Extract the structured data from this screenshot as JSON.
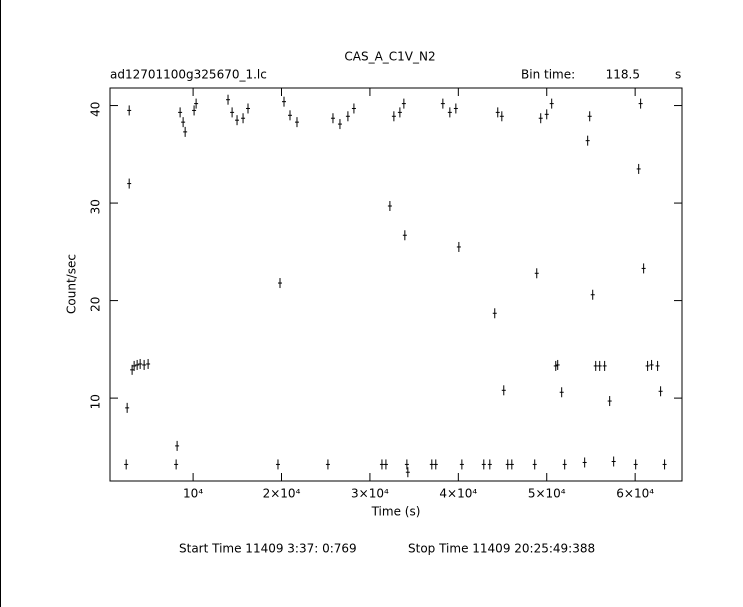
{
  "chart_data": {
    "type": "scatter",
    "title": "CAS_A_C1V_N2",
    "subtitle": "ad12701100g325670_1.lc",
    "bin_time_label": "Bin time:",
    "bin_time": 118.5,
    "bin_time_unit": "s",
    "x_label": "Time (s)",
    "y_label": "Count/sec",
    "start_time": "Start Time 11409  3:37: 0:769",
    "stop_time": "Stop Time 11409 20:25:49:388",
    "color": "#000000",
    "xlim": [
      600,
      65300
    ],
    "ylim": [
      1.5,
      41.8
    ],
    "xticks": [
      {
        "value": 10000,
        "label": "10⁴"
      },
      {
        "value": 20000,
        "label": "2×10⁴"
      },
      {
        "value": 30000,
        "label": "3×10⁴"
      },
      {
        "value": 40000,
        "label": "4×10⁴"
      },
      {
        "value": 50000,
        "label": "5×10⁴"
      },
      {
        "value": 60000,
        "label": "6×10⁴"
      }
    ],
    "yticks": [
      10,
      20,
      30,
      40
    ],
    "x": [
      2430,
      2540,
      2770,
      2770,
      3100,
      3330,
      3670,
      4010,
      4460,
      4910,
      8080,
      8190,
      8530,
      8870,
      9100,
      10110,
      10340,
      13950,
      14410,
      14970,
      15650,
      16210,
      19600,
      19830,
      20280,
      20960,
      21750,
      25250,
      25820,
      26610,
      27510,
      28190,
      31360,
      31810,
      32260,
      32710,
      33390,
      33840,
      33950,
      34180,
      34290,
      37000,
      37450,
      38250,
      39040,
      39720,
      40060,
      40400,
      42880,
      43560,
      44120,
      44460,
      44920,
      45140,
      45590,
      46050,
      48640,
      48870,
      49320,
      50000,
      50560,
      51020,
      51240,
      51690,
      52030,
      54290,
      54630,
      54860,
      55200,
      55540,
      55990,
      56550,
      57120,
      57570,
      60060,
      60400,
      60620,
      60960,
      61410,
      61860,
      62540,
      62880,
      63330
    ],
    "values": [
      3.2,
      9.0,
      32.0,
      39.5,
      12.9,
      13.3,
      13.4,
      13.5,
      13.4,
      13.5,
      3.2,
      5.1,
      39.3,
      38.3,
      37.3,
      39.5,
      40.2,
      40.6,
      39.3,
      38.5,
      38.7,
      39.7,
      3.2,
      21.8,
      40.4,
      39.0,
      38.3,
      3.2,
      38.7,
      38.1,
      38.9,
      39.7,
      3.2,
      3.2,
      29.7,
      38.9,
      39.3,
      40.2,
      26.7,
      3.2,
      2.4,
      3.2,
      3.2,
      40.2,
      39.3,
      39.7,
      25.5,
      3.2,
      3.2,
      3.2,
      18.7,
      39.3,
      38.9,
      10.8,
      3.2,
      3.2,
      3.2,
      22.8,
      38.7,
      39.1,
      40.2,
      13.3,
      13.4,
      10.6,
      3.2,
      3.4,
      36.4,
      38.9,
      20.6,
      13.3,
      13.3,
      13.3,
      9.7,
      3.5,
      3.2,
      33.5,
      40.2,
      23.3,
      13.3,
      13.4,
      13.3,
      10.7,
      3.2
    ]
  }
}
